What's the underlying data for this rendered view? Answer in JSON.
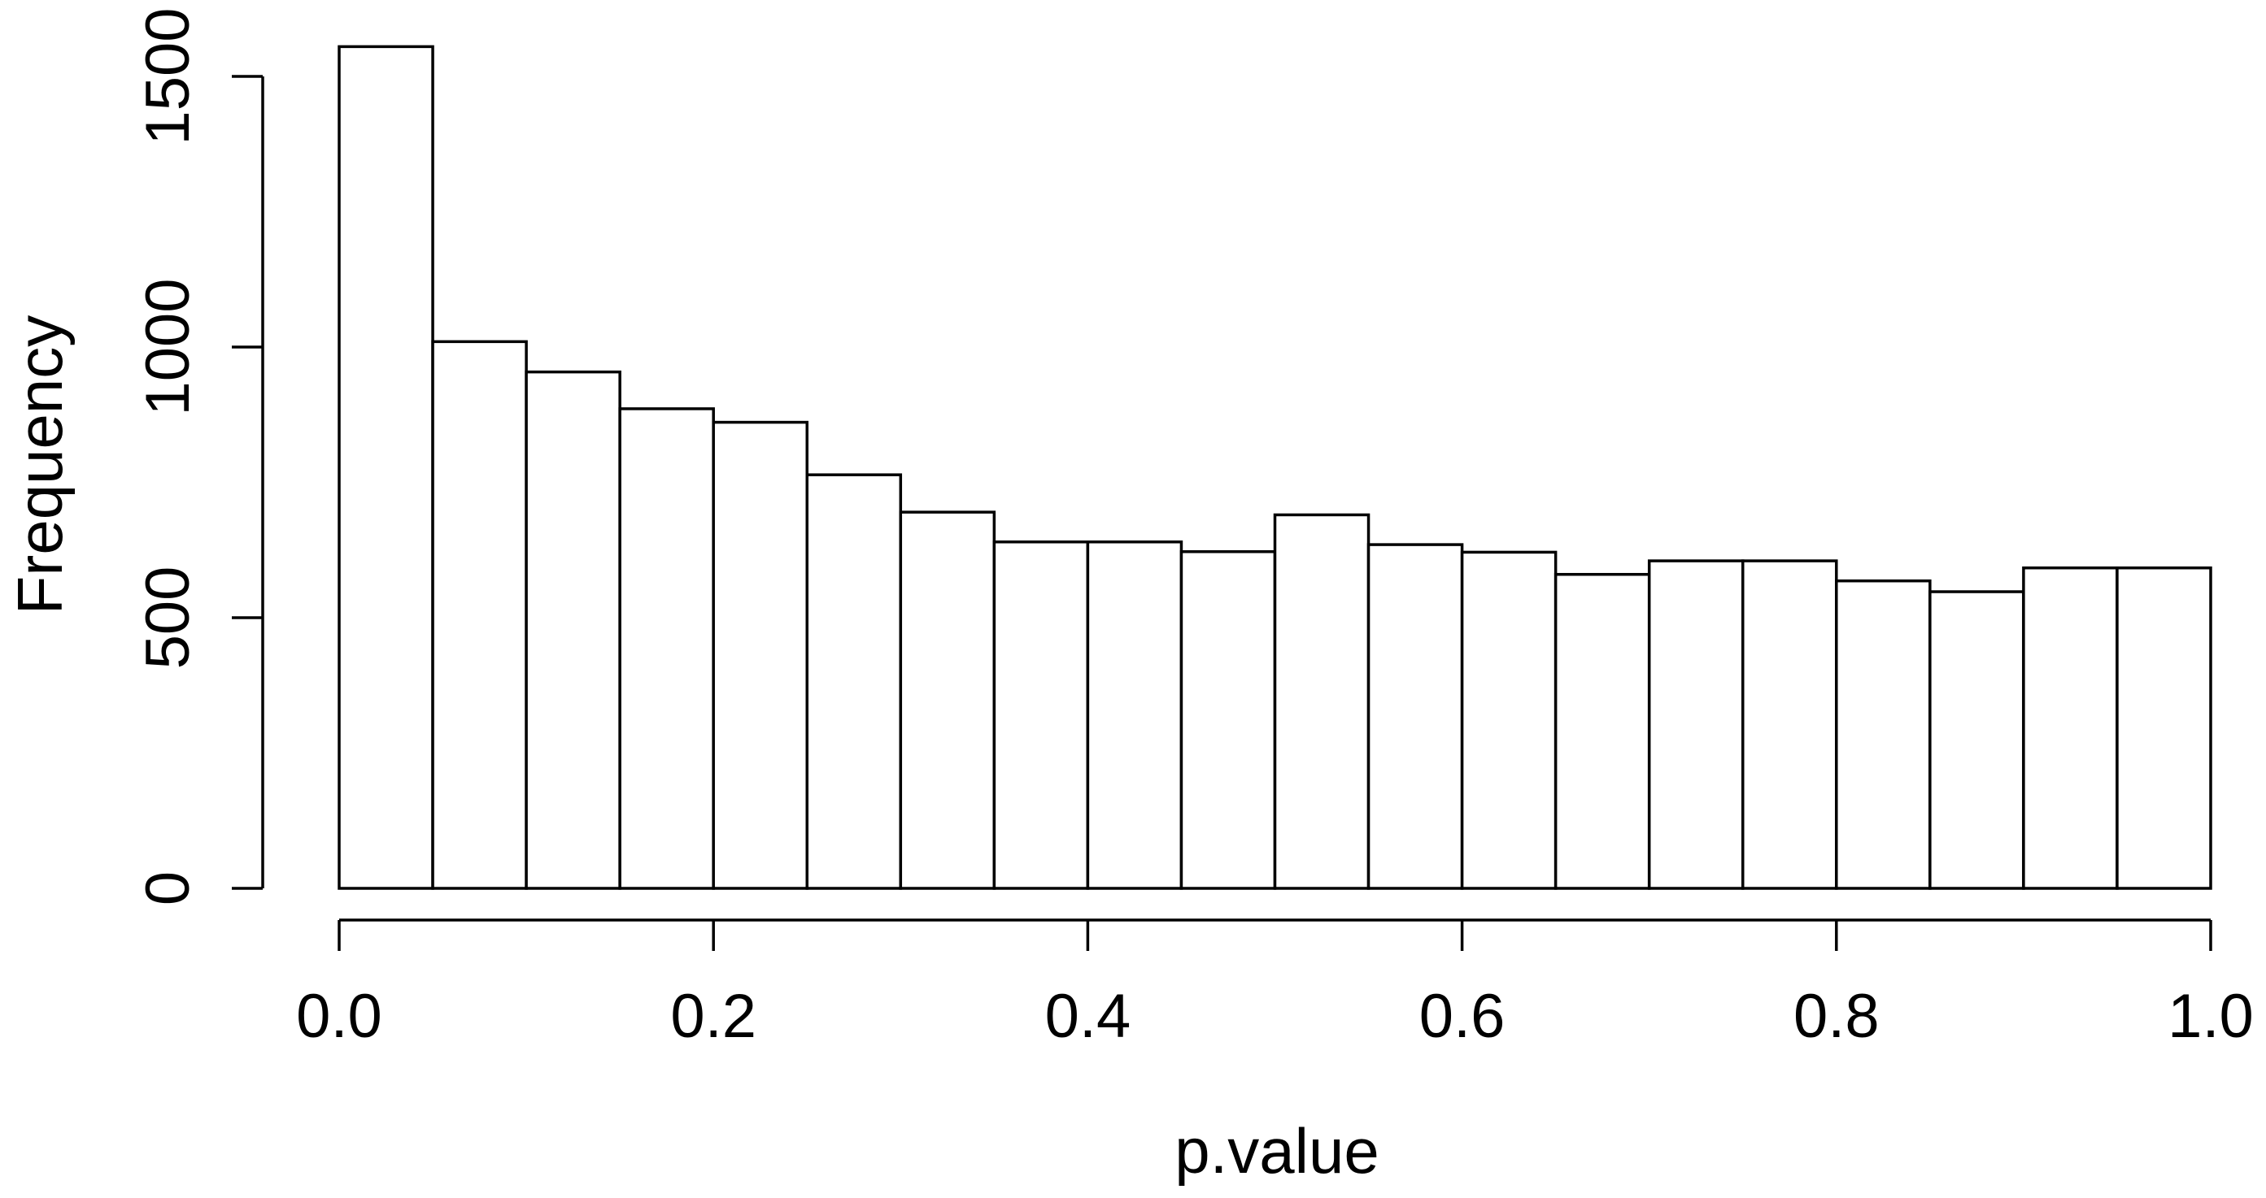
{
  "chart_data": {
    "type": "bar",
    "subtype": "histogram",
    "title": "",
    "xlabel": "p.value",
    "ylabel": "Frequency",
    "grid": false,
    "legend": "none",
    "xlim": [
      0.0,
      1.0
    ],
    "ylim": [
      0,
      1555
    ],
    "bins": {
      "start": 0.0,
      "end": 1.0,
      "width": 0.05
    },
    "bin_mids": [
      0.025,
      0.075,
      0.125,
      0.175,
      0.225,
      0.275,
      0.325,
      0.375,
      0.425,
      0.475,
      0.525,
      0.575,
      0.625,
      0.675,
      0.725,
      0.775,
      0.825,
      0.875,
      0.925,
      0.975
    ],
    "values": [
      1555,
      1010,
      954,
      886,
      861,
      764,
      695,
      640,
      640,
      622,
      690,
      635,
      621,
      580,
      605,
      605,
      568,
      548,
      592,
      592
    ],
    "x_tick_values": [
      0.0,
      0.2,
      0.4,
      0.6,
      0.8,
      1.0
    ],
    "x_tick_labels": [
      "0.0",
      "0.2",
      "0.4",
      "0.6",
      "0.8",
      "1.0"
    ],
    "y_tick_values": [
      0,
      500,
      1000,
      1500
    ],
    "y_tick_labels": [
      "0",
      "500",
      "1000",
      "1500"
    ]
  },
  "colors": {
    "background": "#ffffff",
    "bar_fill": "#ffffff",
    "stroke": "#000000",
    "text": "#000000"
  }
}
